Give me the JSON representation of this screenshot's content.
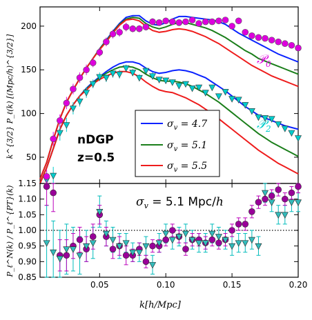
{
  "chart_data": [
    {
      "type": "line",
      "panel": "top",
      "xlim": [
        0.005,
        0.2
      ],
      "ylim": [
        20,
        222
      ],
      "xticks": [
        0.05,
        0.1,
        0.15,
        0.2
      ],
      "yticks": [
        50,
        100,
        150,
        200
      ],
      "ytick_labels": [
        "50",
        "100",
        "150",
        "200"
      ],
      "ylabel": "k^{3/2} P_ℓ(k) [(Mpc/h)^{3/2}]",
      "annotations": {
        "model": "nDGP",
        "redshift": "z=0.5",
        "p0": "𝒫",
        "p0_sub": "0",
        "p2": "𝒫",
        "p2_sub": "2"
      },
      "legend": {
        "placement": "center-right",
        "entries": [
          {
            "label": "σ",
            "sub": "v",
            "value": " = 4.7",
            "color": "#0a22ff"
          },
          {
            "label": "σ",
            "sub": "v",
            "value": " = 5.1",
            "color": "#1a7e1a"
          },
          {
            "label": "σ",
            "sub": "v",
            "value": " = 5.5",
            "color": "#ee1c1c"
          }
        ]
      },
      "x_model": [
        0.005,
        0.01,
        0.015,
        0.02,
        0.025,
        0.03,
        0.035,
        0.04,
        0.045,
        0.05,
        0.055,
        0.06,
        0.065,
        0.07,
        0.075,
        0.08,
        0.085,
        0.09,
        0.095,
        0.1,
        0.105,
        0.11,
        0.115,
        0.12,
        0.125,
        0.13,
        0.135,
        0.14,
        0.145,
        0.15,
        0.155,
        0.16,
        0.165,
        0.17,
        0.175,
        0.18,
        0.185,
        0.19,
        0.195,
        0.2
      ],
      "series": [
        {
          "name": "σv=4.7 P0",
          "color": "#0a22ff",
          "values": [
            25,
            44,
            70,
            94,
            113,
            127,
            140,
            152,
            163,
            174,
            184,
            194,
            203,
            210,
            212,
            212,
            206,
            202,
            201,
            204,
            208,
            211,
            211,
            210,
            209,
            208,
            207,
            205,
            202,
            197,
            192,
            188,
            184,
            180,
            176,
            172,
            168,
            165,
            162,
            159
          ]
        },
        {
          "name": "σv=5.1 P0",
          "color": "#1a7e1a",
          "values": [
            25,
            44,
            70,
            94,
            113,
            127,
            140,
            152,
            163,
            174,
            183,
            193,
            202,
            208,
            210,
            209,
            203,
            199,
            197,
            199,
            202,
            204,
            204,
            202,
            200,
            198,
            195,
            191,
            187,
            182,
            177,
            172,
            168,
            163,
            160,
            157,
            154,
            151,
            148,
            145
          ]
        },
        {
          "name": "σv=5.5 P0",
          "color": "#ee1c1c",
          "values": [
            25,
            44,
            70,
            94,
            113,
            127,
            140,
            152,
            163,
            173,
            182,
            192,
            201,
            207,
            208,
            206,
            200,
            195,
            193,
            194,
            196,
            197,
            196,
            194,
            191,
            188,
            184,
            180,
            175,
            170,
            165,
            160,
            155,
            151,
            147,
            143,
            140,
            137,
            134,
            131
          ]
        },
        {
          "name": "σv=4.7 P2",
          "color": "#0a22ff",
          "values": [
            20,
            38,
            60,
            82,
            98,
            110,
            120,
            129,
            136,
            142,
            148,
            153,
            157,
            159,
            159,
            157,
            152,
            148,
            146,
            147,
            149,
            150,
            149,
            147,
            144,
            141,
            136,
            131,
            126,
            120,
            114,
            108,
            103,
            98,
            95,
            92,
            89,
            86,
            84,
            82
          ]
        },
        {
          "name": "σv=5.1 P2",
          "color": "#1a7e1a",
          "values": [
            20,
            38,
            60,
            82,
            98,
            110,
            120,
            128,
            135,
            141,
            146,
            150,
            153,
            154,
            153,
            150,
            145,
            141,
            138,
            137,
            137,
            136,
            134,
            131,
            127,
            123,
            118,
            113,
            107,
            101,
            95,
            89,
            83,
            77,
            72,
            67,
            63,
            59,
            55,
            51
          ]
        },
        {
          "name": "σv=5.5 P2",
          "color": "#ee1c1c",
          "values": [
            20,
            38,
            60,
            82,
            98,
            110,
            120,
            127,
            134,
            139,
            143,
            146,
            148,
            148,
            146,
            142,
            136,
            131,
            127,
            125,
            124,
            121,
            118,
            114,
            110,
            105,
            100,
            94,
            88,
            82,
            76,
            70,
            64,
            58,
            53,
            48,
            43,
            39,
            35,
            31
          ]
        }
      ],
      "data_points": {
        "P0": {
          "color": "#dd00dd",
          "x": [
            0.01,
            0.015,
            0.02,
            0.025,
            0.03,
            0.035,
            0.04,
            0.045,
            0.05,
            0.055,
            0.06,
            0.065,
            0.07,
            0.075,
            0.08,
            0.085,
            0.09,
            0.095,
            0.1,
            0.105,
            0.11,
            0.115,
            0.12,
            0.125,
            0.13,
            0.135,
            0.14,
            0.145,
            0.15,
            0.155,
            0.16,
            0.165,
            0.17,
            0.175,
            0.18,
            0.185,
            0.19,
            0.195,
            0.2
          ],
          "y": [
            28,
            71,
            92,
            112,
            128,
            141,
            150,
            158,
            170,
            182,
            191,
            193,
            199,
            197,
            197,
            199,
            205,
            204,
            206,
            205,
            204,
            205,
            207,
            203,
            205,
            205,
            206,
            207,
            200,
            206,
            193,
            189,
            187,
            186,
            184,
            182,
            180,
            178,
            175
          ],
          "err": [
            8,
            8,
            7,
            7,
            6,
            6,
            6,
            5,
            5,
            5,
            5,
            5,
            5,
            4,
            4,
            4,
            4,
            3,
            3,
            3,
            3,
            3,
            3,
            3,
            3,
            3,
            3,
            3,
            3,
            3,
            2,
            2,
            2,
            2,
            2,
            2,
            2,
            2,
            2
          ]
        },
        "P2": {
          "color": "#00cccc",
          "x": [
            0.01,
            0.015,
            0.02,
            0.025,
            0.03,
            0.035,
            0.04,
            0.045,
            0.05,
            0.055,
            0.06,
            0.065,
            0.07,
            0.075,
            0.08,
            0.085,
            0.09,
            0.095,
            0.1,
            0.105,
            0.11,
            0.115,
            0.12,
            0.125,
            0.13,
            0.135,
            0.14,
            0.145,
            0.15,
            0.155,
            0.16,
            0.165,
            0.17,
            0.175,
            0.18,
            0.185,
            0.19,
            0.195,
            0.2
          ],
          "y": [
            24,
            29,
            78,
            87,
            106,
            114,
            124,
            134,
            142,
            141,
            146,
            145,
            152,
            147,
            141,
            149,
            143,
            139,
            138,
            136,
            132,
            134,
            129,
            130,
            124,
            130,
            120,
            125,
            117,
            116,
            110,
            103,
            96,
            95,
            94,
            88,
            83,
            78,
            72
          ],
          "err": [
            10,
            10,
            9,
            8,
            7,
            6,
            6,
            5,
            5,
            5,
            5,
            5,
            4,
            4,
            4,
            4,
            4,
            3,
            3,
            3,
            3,
            3,
            3,
            3,
            3,
            3,
            3,
            3,
            3,
            3,
            3,
            3,
            3,
            3,
            3,
            3,
            3,
            3,
            3
          ]
        }
      }
    },
    {
      "type": "scatter",
      "panel": "bottom",
      "xlim": [
        0.005,
        0.2
      ],
      "ylim": [
        0.85,
        1.15
      ],
      "xticks": [
        0.05,
        0.1,
        0.15,
        0.2
      ],
      "xtick_labels": [
        "0.05",
        "0.10",
        "0.15",
        "0.20"
      ],
      "yticks": [
        0.85,
        0.9,
        0.95,
        1.0,
        1.05,
        1.1,
        1.15
      ],
      "ytick_labels": [
        "0.85",
        "0.90",
        "0.95",
        "1.00",
        "1.05",
        "1.10",
        "1.15"
      ],
      "xlabel": "k[h/Mpc]",
      "ylabel": "P_ℓ^N(k) / P_ℓ^{PT}(k)",
      "annotation": {
        "sigma": "σ",
        "sub": "v",
        "rest": " = 5.1 Mpc/",
        "h": "h"
      },
      "reference_line": 1.0,
      "x": [
        0.01,
        0.015,
        0.02,
        0.025,
        0.03,
        0.035,
        0.04,
        0.045,
        0.05,
        0.055,
        0.06,
        0.065,
        0.07,
        0.075,
        0.08,
        0.085,
        0.09,
        0.095,
        0.1,
        0.105,
        0.11,
        0.115,
        0.12,
        0.125,
        0.13,
        0.135,
        0.14,
        0.145,
        0.15,
        0.155,
        0.16,
        0.165,
        0.17,
        0.175,
        0.18,
        0.185,
        0.19,
        0.195,
        0.2
      ],
      "series": [
        {
          "name": "P0",
          "color": "#bb00bb",
          "values": [
            1.14,
            1.12,
            0.92,
            0.92,
            0.95,
            0.97,
            0.94,
            0.98,
            1.05,
            0.98,
            0.94,
            0.95,
            0.92,
            0.92,
            0.94,
            0.9,
            0.95,
            0.95,
            0.97,
            1.0,
            0.98,
            0.94,
            0.97,
            0.97,
            0.96,
            0.97,
            0.96,
            0.97,
            1.0,
            1.02,
            1.02,
            1.06,
            1.09,
            1.1,
            1.11,
            1.13,
            1.1,
            1.12,
            1.14
          ],
          "err": [
            0.06,
            0.06,
            0.05,
            0.05,
            0.04,
            0.04,
            0.04,
            0.04,
            0.03,
            0.03,
            0.03,
            0.03,
            0.03,
            0.02,
            0.02,
            0.02,
            0.02,
            0.02,
            0.02,
            0.02,
            0.02,
            0.02,
            0.02,
            0.02,
            0.02,
            0.02,
            0.02,
            0.02,
            0.02,
            0.02,
            0.02,
            0.02,
            0.02,
            0.02,
            0.02,
            0.02,
            0.02,
            0.02,
            0.02
          ]
        },
        {
          "name": "P2",
          "color": "#00bbbb",
          "values": [
            0.96,
            0.93,
            0.91,
            0.94,
            0.94,
            0.92,
            0.95,
            0.96,
            1.06,
            0.99,
            0.97,
            0.95,
            0.96,
            0.93,
            0.93,
            0.95,
            0.89,
            0.96,
            0.99,
            0.97,
            0.98,
            0.99,
            0.97,
            0.96,
            0.96,
            0.99,
            0.98,
            0.97,
            0.95,
            0.96,
            0.96,
            0.97,
            0.95,
            1.12,
            1.09,
            1.05,
            1.05,
            1.09,
            1.09
          ],
          "err": [
            0.12,
            0.1,
            0.09,
            0.08,
            0.07,
            0.06,
            0.05,
            0.05,
            0.05,
            0.04,
            0.04,
            0.04,
            0.03,
            0.03,
            0.03,
            0.03,
            0.03,
            0.03,
            0.03,
            0.03,
            0.03,
            0.03,
            0.03,
            0.03,
            0.03,
            0.03,
            0.03,
            0.03,
            0.03,
            0.03,
            0.03,
            0.03,
            0.03,
            0.03,
            0.03,
            0.03,
            0.03,
            0.03,
            0.03
          ]
        }
      ]
    }
  ]
}
